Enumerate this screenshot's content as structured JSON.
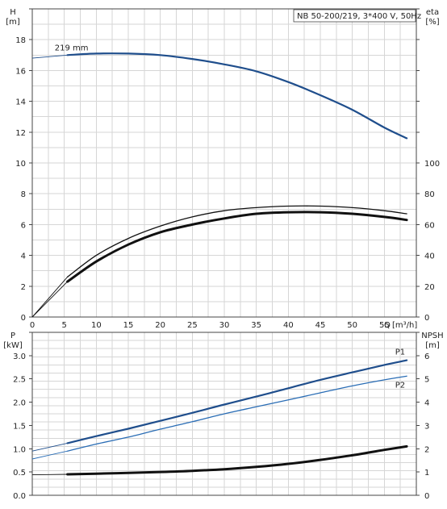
{
  "chart_data": [
    {
      "type": "line",
      "title_box": "NB 50-200/219, 3*400 V, 50Hz",
      "left_axis": {
        "label": "H",
        "unit": "[m]",
        "range": [
          0,
          20
        ],
        "ticks": [
          0,
          2,
          4,
          6,
          8,
          10,
          12,
          14,
          16,
          18
        ]
      },
      "right_axis": {
        "label": "eta",
        "unit": "[%]",
        "range": [
          0,
          200
        ],
        "ticks": [
          0,
          20,
          40,
          60,
          80,
          100
        ]
      },
      "x_axis": {
        "label": "Q [m³/h]",
        "range": [
          0,
          60
        ],
        "ticks": [
          0,
          5,
          10,
          15,
          20,
          25,
          30,
          35,
          40,
          45,
          50,
          55
        ]
      },
      "grid": true,
      "annotations": [
        "219 mm"
      ],
      "series": [
        {
          "role": "head",
          "axis": "left",
          "color": "#1f4e8c",
          "x": [
            0,
            5.5,
            10,
            15,
            20,
            25,
            30,
            35,
            40,
            45,
            50,
            55,
            58.5
          ],
          "y": [
            16.8,
            17.0,
            17.1,
            17.1,
            17.0,
            16.75,
            16.4,
            15.95,
            15.25,
            14.4,
            13.45,
            12.3,
            11.6
          ]
        },
        {
          "role": "eta-1",
          "axis": "right",
          "color": "#111111",
          "x": [
            0,
            5.5,
            10,
            15,
            20,
            25,
            30,
            35,
            40,
            45,
            50,
            55,
            58.5
          ],
          "y": [
            0,
            26,
            40,
            51,
            59,
            65,
            69,
            71,
            72,
            72,
            71,
            69,
            67
          ]
        },
        {
          "role": "eta-2",
          "axis": "right",
          "color": "#111111",
          "x": [
            0,
            5.5,
            10,
            15,
            20,
            25,
            30,
            35,
            40,
            45,
            50,
            55,
            58.5
          ],
          "y": [
            0,
            23,
            36,
            47,
            55,
            60,
            64,
            67,
            68,
            68,
            67,
            65,
            63
          ]
        }
      ]
    },
    {
      "type": "line",
      "left_axis": {
        "label": "P",
        "unit": "[kW]",
        "range": [
          0,
          3.5
        ],
        "ticks": [
          0.0,
          0.5,
          1.0,
          1.5,
          2.0,
          2.5,
          3.0
        ]
      },
      "right_axis": {
        "label": "NPSH",
        "unit": "[m]",
        "range": [
          0,
          7
        ],
        "ticks": [
          0,
          1,
          2,
          3,
          4,
          5,
          6
        ]
      },
      "x_axis": {
        "range": [
          0,
          60
        ]
      },
      "grid": true,
      "series": [
        {
          "name": "P1",
          "axis": "left",
          "color": "#1f4e8c",
          "x": [
            0,
            5.5,
            10,
            15,
            20,
            25,
            30,
            35,
            40,
            45,
            50,
            55,
            58.5
          ],
          "y": [
            0.95,
            1.12,
            1.27,
            1.43,
            1.6,
            1.77,
            1.95,
            2.12,
            2.3,
            2.48,
            2.64,
            2.8,
            2.9
          ]
        },
        {
          "name": "P2",
          "axis": "left",
          "color": "#2a6db5",
          "x": [
            0,
            5.5,
            10,
            15,
            20,
            25,
            30,
            35,
            40,
            45,
            50,
            55,
            58.5
          ],
          "y": [
            0.78,
            0.95,
            1.1,
            1.25,
            1.42,
            1.58,
            1.75,
            1.9,
            2.05,
            2.2,
            2.35,
            2.48,
            2.56
          ]
        },
        {
          "role": "npsh",
          "axis": "right",
          "color": "#111111",
          "x": [
            0,
            5.5,
            10,
            15,
            20,
            25,
            30,
            35,
            40,
            45,
            50,
            55,
            58.5
          ],
          "y": [
            0.88,
            0.9,
            0.93,
            0.96,
            1.0,
            1.05,
            1.12,
            1.22,
            1.35,
            1.52,
            1.72,
            1.95,
            2.1
          ]
        }
      ]
    }
  ]
}
